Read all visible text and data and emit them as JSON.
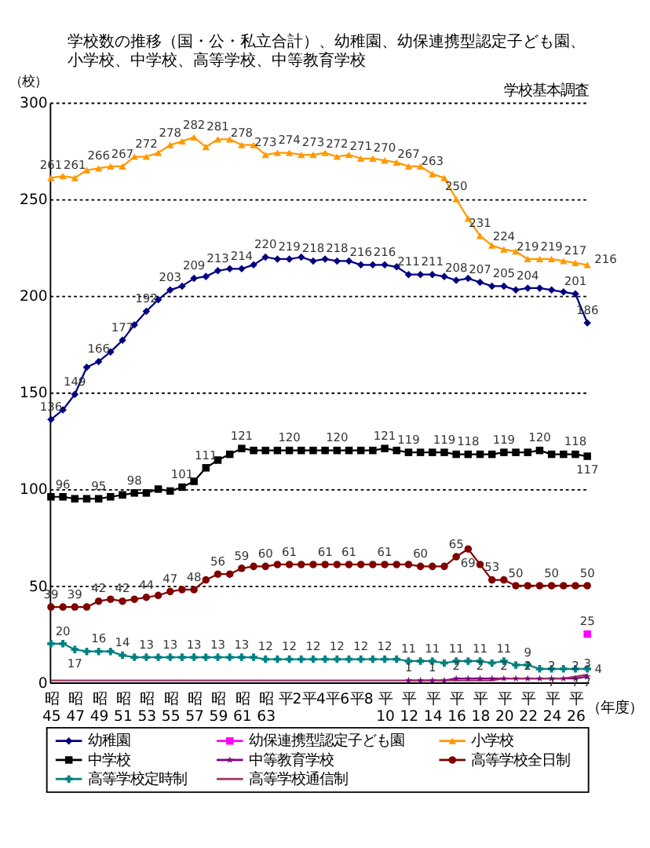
{
  "chart_data": {
    "type": "line",
    "title": "学校数の推移（国・公・私立合計）、幼稚園、幼保連携型認定子ども園、小学校、中学校、高等学校、中等教育学校",
    "ylabel": "（校）",
    "xlabel": "（年度）",
    "annotations": [
      "学校基本調査"
    ],
    "categories": [
      "昭 45",
      null,
      "昭 47",
      null,
      "昭 49",
      null,
      "昭 51",
      null,
      "昭 53",
      null,
      "昭 55",
      null,
      "昭 57",
      null,
      "昭 59",
      null,
      "昭 61",
      null,
      "昭 63",
      null,
      "平2",
      null,
      "平4",
      null,
      "平6",
      null,
      "平8",
      null,
      "平 10",
      null,
      "平 12",
      null,
      "平 14",
      null,
      "平 16",
      null,
      "平 18",
      null,
      "平 20",
      null,
      "平 22",
      null,
      "平 24",
      null,
      "平 26",
      null
    ],
    "ylim": [
      0,
      300
    ],
    "yticks": [
      0,
      50,
      100,
      150,
      200,
      250,
      300
    ],
    "grid": "y",
    "legend": "bottom",
    "line_style": "solid",
    "series": [
      {
        "name": "幼稚園",
        "color": "#000080",
        "marker": "diamond",
        "values": [
          136,
          141,
          149,
          163,
          166,
          171,
          177,
          185,
          192,
          198,
          203,
          205,
          209,
          210,
          213,
          214,
          214,
          216,
          220,
          219,
          219,
          220,
          218,
          219,
          218,
          218,
          216,
          216,
          216,
          215,
          211,
          211,
          211,
          210,
          208,
          209,
          207,
          205,
          205,
          203,
          204,
          204,
          203,
          202,
          201,
          186
        ],
        "value_labels": [
          "136",
          null,
          "149",
          null,
          "166",
          null,
          "177",
          null,
          "192",
          null,
          "203",
          null,
          "209",
          null,
          "213",
          null,
          "214",
          null,
          "220",
          null,
          "219",
          null,
          "218",
          null,
          "218",
          null,
          "216",
          null,
          "216",
          null,
          "211",
          null,
          "211",
          null,
          "208",
          null,
          "207",
          null,
          "205",
          null,
          "204",
          null,
          null,
          null,
          "201",
          "186"
        ]
      },
      {
        "name": "幼保連携型認定子ども園",
        "color": "#ff00ff",
        "marker": "square",
        "values": [
          null,
          null,
          null,
          null,
          null,
          null,
          null,
          null,
          null,
          null,
          null,
          null,
          null,
          null,
          null,
          null,
          null,
          null,
          null,
          null,
          null,
          null,
          null,
          null,
          null,
          null,
          null,
          null,
          null,
          null,
          null,
          null,
          null,
          null,
          null,
          null,
          null,
          null,
          null,
          null,
          null,
          null,
          null,
          null,
          null,
          25
        ],
        "value_labels": [
          null,
          null,
          null,
          null,
          null,
          null,
          null,
          null,
          null,
          null,
          null,
          null,
          null,
          null,
          null,
          null,
          null,
          null,
          null,
          null,
          null,
          null,
          null,
          null,
          null,
          null,
          null,
          null,
          null,
          null,
          null,
          null,
          null,
          null,
          null,
          null,
          null,
          null,
          null,
          null,
          null,
          null,
          null,
          null,
          null,
          "25"
        ]
      },
      {
        "name": "小学校",
        "color": "#ff9900",
        "marker": "triangle",
        "values": [
          261,
          262,
          261,
          265,
          266,
          267,
          267,
          272,
          272,
          274,
          278,
          280,
          282,
          277,
          281,
          281,
          278,
          278,
          273,
          274,
          274,
          273,
          273,
          274,
          272,
          273,
          271,
          271,
          270,
          269,
          267,
          267,
          263,
          261,
          250,
          240,
          231,
          226,
          224,
          223,
          219,
          219,
          219,
          218,
          217,
          216
        ],
        "value_labels": [
          "261",
          null,
          "261",
          null,
          "266",
          null,
          "267",
          null,
          "272",
          null,
          "278",
          null,
          "282",
          null,
          "281",
          null,
          "278",
          null,
          "273",
          null,
          "274",
          null,
          "273",
          null,
          "272",
          null,
          "271",
          null,
          "270",
          null,
          "267",
          null,
          "263",
          null,
          "250",
          null,
          "231",
          null,
          "224",
          null,
          "219",
          null,
          "219",
          null,
          "217",
          "216"
        ]
      },
      {
        "name": "中学校",
        "color": "#000000",
        "marker": "square",
        "values": [
          96,
          96,
          95,
          95,
          95,
          96,
          97,
          98,
          98,
          100,
          99,
          101,
          104,
          111,
          115,
          118,
          121,
          120,
          120,
          120,
          120,
          120,
          120,
          120,
          120,
          120,
          120,
          120,
          121,
          120,
          119,
          119,
          119,
          119,
          118,
          118,
          118,
          118,
          119,
          119,
          119,
          120,
          118,
          118,
          118,
          117
        ],
        "value_labels": [
          null,
          "96",
          null,
          null,
          "95",
          null,
          null,
          "98",
          null,
          null,
          null,
          "101",
          null,
          "111",
          null,
          null,
          "121",
          null,
          null,
          null,
          "120",
          null,
          null,
          null,
          "120",
          null,
          null,
          null,
          "121",
          null,
          "119",
          null,
          null,
          "119",
          null,
          "118",
          null,
          null,
          "119",
          null,
          null,
          "120",
          null,
          null,
          "118",
          "117"
        ]
      },
      {
        "name": "中等教育学校",
        "color": "#800080",
        "marker": "star",
        "values": [
          null,
          null,
          null,
          null,
          null,
          null,
          null,
          null,
          null,
          null,
          null,
          null,
          null,
          null,
          null,
          null,
          null,
          null,
          null,
          null,
          null,
          null,
          null,
          null,
          null,
          null,
          null,
          null,
          null,
          null,
          1,
          1,
          1,
          1,
          2,
          2,
          2,
          2,
          2,
          2,
          2,
          2,
          2,
          2,
          2,
          3
        ],
        "value_labels": [
          null,
          null,
          null,
          null,
          null,
          null,
          null,
          null,
          null,
          null,
          null,
          null,
          null,
          null,
          null,
          null,
          null,
          null,
          null,
          null,
          null,
          null,
          null,
          null,
          null,
          null,
          null,
          null,
          null,
          null,
          "1",
          null,
          "1",
          null,
          "2",
          null,
          "2",
          null,
          "2",
          null,
          "2",
          null,
          "2",
          null,
          "2",
          "3"
        ]
      },
      {
        "name": "高等学校全日制",
        "color": "#800000",
        "marker": "circle",
        "values": [
          39,
          39,
          39,
          39,
          42,
          43,
          42,
          43,
          44,
          45,
          47,
          48,
          48,
          53,
          56,
          56,
          59,
          60,
          60,
          61,
          61,
          61,
          61,
          61,
          61,
          61,
          61,
          61,
          61,
          61,
          61,
          60,
          60,
          60,
          65,
          69,
          61,
          53,
          53,
          50,
          50,
          50,
          50,
          50,
          50,
          50
        ],
        "value_labels": [
          "39",
          null,
          "39",
          null,
          "42",
          null,
          "42",
          null,
          "44",
          null,
          "47",
          null,
          "48",
          null,
          "56",
          null,
          "59",
          null,
          "60",
          null,
          "61",
          null,
          null,
          "61",
          null,
          "61",
          null,
          null,
          "61",
          null,
          null,
          "60",
          null,
          null,
          "65",
          "69",
          null,
          "53",
          null,
          "50",
          null,
          null,
          "50",
          null,
          null,
          "50"
        ]
      },
      {
        "name": "高等学校定時制",
        "color": "#008080",
        "marker": "cross",
        "values": [
          20,
          20,
          17,
          16,
          16,
          16,
          14,
          13,
          13,
          13,
          13,
          13,
          13,
          13,
          13,
          13,
          13,
          13,
          12,
          12,
          12,
          12,
          12,
          12,
          12,
          12,
          12,
          12,
          12,
          12,
          11,
          11,
          11,
          10,
          11,
          11,
          11,
          10,
          11,
          9,
          9,
          7,
          7,
          7,
          7,
          7
        ],
        "value_labels": [
          null,
          "20",
          "17",
          null,
          "16",
          null,
          "14",
          null,
          "13",
          null,
          "13",
          null,
          "13",
          null,
          "13",
          null,
          "13",
          null,
          "12",
          null,
          "12",
          null,
          "12",
          null,
          "12",
          null,
          "12",
          null,
          "12",
          null,
          "11",
          null,
          "11",
          null,
          "11",
          null,
          "11",
          null,
          "11",
          null,
          "9",
          null,
          "7",
          null,
          "7",
          "7"
        ]
      },
      {
        "name": "高等学校通信制",
        "color": "#993366",
        "marker": "none",
        "values": [
          1,
          1,
          1,
          1,
          1,
          1,
          1,
          1,
          1,
          1,
          1,
          1,
          1,
          1,
          1,
          1,
          1,
          1,
          1,
          1,
          1,
          1,
          1,
          1,
          1,
          1,
          1,
          1,
          1,
          1,
          1,
          1,
          1,
          1,
          1,
          1,
          1,
          1,
          2,
          2,
          2,
          2,
          2,
          2,
          3,
          4
        ],
        "value_labels": [
          null,
          null,
          null,
          null,
          null,
          null,
          null,
          null,
          null,
          null,
          null,
          null,
          null,
          null,
          null,
          null,
          null,
          null,
          null,
          null,
          null,
          null,
          null,
          null,
          null,
          null,
          null,
          null,
          null,
          null,
          null,
          null,
          null,
          null,
          null,
          null,
          null,
          null,
          null,
          null,
          null,
          null,
          null,
          null,
          null,
          "4"
        ]
      }
    ]
  }
}
